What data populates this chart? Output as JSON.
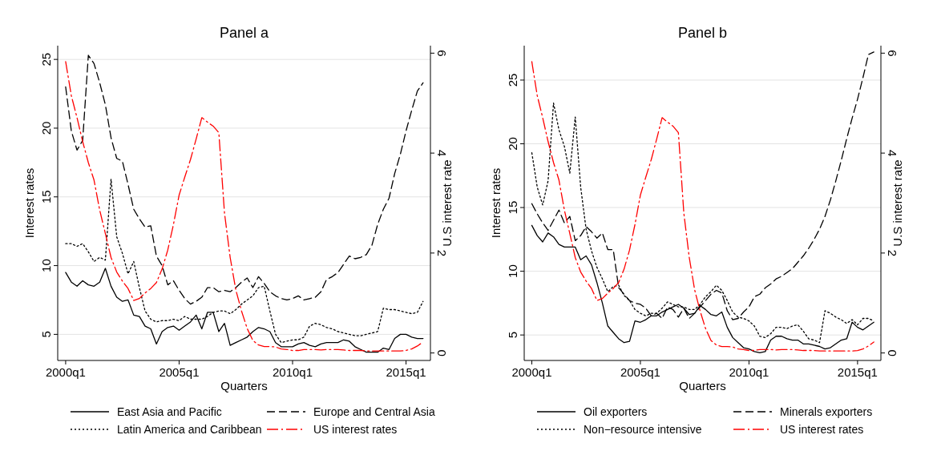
{
  "chart_data": [
    {
      "type": "line",
      "title": "Panel a",
      "xlabel": "Quarters",
      "ylabel": "Interest rates",
      "y2label": "U.S interest rate",
      "categories": [
        "2000q1",
        null,
        null,
        null,
        null,
        null,
        null,
        null,
        null,
        null,
        null,
        null,
        null,
        null,
        null,
        null,
        null,
        null,
        null,
        null,
        "2005q1",
        null,
        null,
        null,
        null,
        null,
        null,
        null,
        null,
        null,
        null,
        null,
        null,
        null,
        null,
        null,
        null,
        null,
        null,
        null,
        "2010q1",
        null,
        null,
        null,
        null,
        null,
        null,
        null,
        null,
        null,
        null,
        null,
        null,
        null,
        null,
        null,
        null,
        null,
        null,
        null,
        "2015q1",
        null,
        null,
        null
      ],
      "ylim": [
        3.1,
        26
      ],
      "yticks": [
        5,
        10,
        15,
        20,
        25
      ],
      "y2lim": [
        -0.15,
        6.15
      ],
      "y2ticks": [
        0,
        2,
        4,
        6
      ],
      "grid": "y",
      "legend": "bottom",
      "marker": "none",
      "series": [
        {
          "name": "East Asia and Pacific",
          "color": "#000000",
          "line_style": "solid",
          "values": [
            9.5,
            8.8,
            8.5,
            8.9,
            8.6,
            8.5,
            8.8,
            9.8,
            8.5,
            7.7,
            7.4,
            7.5,
            6.4,
            6.3,
            5.6,
            5.4,
            4.3,
            5.2,
            5.5,
            5.6,
            5.3,
            5.6,
            5.9,
            6.4,
            5.4,
            6.6,
            6.6,
            5.2,
            5.8,
            4.2,
            4.4,
            4.6,
            4.8,
            5.2,
            5.5,
            5.4,
            5.2,
            4.4,
            4.1,
            4.1,
            4.1,
            4.3,
            4.4,
            4.2,
            4.1,
            4.3,
            4.4,
            4.4,
            4.4,
            4.6,
            4.5,
            4.1,
            3.9,
            3.7,
            3.7,
            3.7,
            4.0,
            3.9,
            4.7,
            5.0,
            5.0,
            4.8,
            4.7,
            4.7
          ]
        },
        {
          "name": "Europe and Central Asia",
          "color": "#000000",
          "line_style": "dashed",
          "values": [
            23.0,
            19.8,
            18.4,
            19.1,
            25.3,
            24.7,
            23.3,
            21.7,
            19.3,
            17.8,
            17.6,
            15.9,
            14.1,
            13.4,
            12.8,
            12.9,
            10.7,
            10.0,
            8.6,
            8.9,
            8.2,
            7.6,
            7.2,
            7.4,
            7.7,
            8.4,
            8.4,
            8.1,
            8.2,
            8.1,
            8.4,
            8.8,
            9.1,
            8.4,
            9.2,
            8.7,
            8.1,
            7.8,
            7.6,
            7.5,
            7.6,
            7.8,
            7.5,
            7.6,
            7.7,
            8.1,
            9.0,
            9.2,
            9.5,
            10.1,
            10.7,
            10.5,
            10.6,
            10.8,
            11.5,
            13.0,
            14.1,
            14.9,
            16.7,
            18.1,
            19.8,
            21.3,
            22.7,
            23.3
          ]
        },
        {
          "name": "Latin America and Caribbean",
          "color": "#000000",
          "line_style": "dotted",
          "values": [
            11.6,
            11.6,
            11.4,
            11.6,
            11.0,
            10.3,
            10.6,
            10.4,
            16.3,
            12.1,
            10.9,
            9.4,
            10.3,
            8.4,
            6.7,
            6.1,
            5.9,
            6.0,
            6.0,
            6.1,
            6.0,
            6.3,
            6.1,
            6.1,
            6.1,
            6.3,
            6.6,
            6.7,
            6.7,
            6.5,
            6.8,
            7.2,
            7.5,
            7.8,
            8.4,
            8.5,
            6.7,
            5.0,
            4.4,
            4.5,
            4.6,
            4.6,
            4.8,
            5.6,
            5.8,
            5.7,
            5.5,
            5.4,
            5.2,
            5.1,
            5.0,
            4.9,
            4.9,
            5.0,
            5.1,
            5.2,
            6.9,
            6.8,
            6.8,
            6.7,
            6.6,
            6.5,
            6.6,
            7.4
          ]
        },
        {
          "name": "US interest rates",
          "color": "#ff0000",
          "line_style": "dashed",
          "axis": "y2",
          "values": [
            5.83,
            5.15,
            4.71,
            4.23,
            3.81,
            3.46,
            2.86,
            2.39,
            1.91,
            1.62,
            1.44,
            1.29,
            1.05,
            1.09,
            1.2,
            1.29,
            1.41,
            1.68,
            2.06,
            2.57,
            3.16,
            3.52,
            3.87,
            4.28,
            4.71,
            4.62,
            4.54,
            4.41,
            2.8,
            1.91,
            1.26,
            0.84,
            0.49,
            0.25,
            0.16,
            0.13,
            0.13,
            0.12,
            0.08,
            0.07,
            0.05,
            0.05,
            0.07,
            0.07,
            0.07,
            0.06,
            0.07,
            0.07,
            0.07,
            0.06,
            0.05,
            0.05,
            0.05,
            0.04,
            0.04,
            0.04,
            0.04,
            0.04,
            0.04,
            0.04,
            0.05,
            0.08,
            0.14,
            0.22
          ]
        }
      ]
    },
    {
      "type": "line",
      "title": "Panel b",
      "xlabel": "Quarters",
      "ylabel": "Interest rates",
      "y2label": "U.S interest rate",
      "categories": [
        "2000q1",
        null,
        null,
        null,
        null,
        null,
        null,
        null,
        null,
        null,
        null,
        null,
        null,
        null,
        null,
        null,
        null,
        null,
        null,
        null,
        "2005q1",
        null,
        null,
        null,
        null,
        null,
        null,
        null,
        null,
        null,
        null,
        null,
        null,
        null,
        null,
        null,
        null,
        null,
        null,
        null,
        "2010q1",
        null,
        null,
        null,
        null,
        null,
        null,
        null,
        null,
        null,
        null,
        null,
        null,
        null,
        null,
        null,
        null,
        null,
        null,
        null,
        "2015q1",
        null,
        null,
        null
      ],
      "ylim": [
        3.0,
        27.7
      ],
      "yticks": [
        5,
        10,
        15,
        20,
        25
      ],
      "y2lim": [
        -0.15,
        6.15
      ],
      "y2ticks": [
        0,
        2,
        4,
        6
      ],
      "grid": "y",
      "legend": "bottom",
      "marker": "none",
      "series": [
        {
          "name": "Oil exporters",
          "color": "#000000",
          "line_style": "solid",
          "values": [
            13.6,
            12.8,
            12.3,
            13.0,
            12.7,
            12.1,
            11.9,
            11.9,
            11.9,
            10.9,
            11.2,
            10.5,
            9.1,
            7.5,
            5.7,
            5.2,
            4.7,
            4.4,
            4.5,
            6.1,
            6.0,
            6.2,
            6.5,
            6.5,
            6.8,
            7.0,
            7.2,
            7.4,
            7.1,
            6.6,
            6.7,
            7.3,
            7.0,
            6.6,
            6.5,
            6.8,
            5.6,
            4.8,
            4.4,
            4.0,
            3.9,
            3.7,
            3.6,
            3.7,
            4.6,
            4.9,
            4.9,
            4.7,
            4.6,
            4.6,
            4.3,
            4.3,
            4.2,
            4.1,
            3.9,
            4.0,
            4.3,
            4.6,
            4.7,
            6.0,
            5.6,
            5.4,
            5.7,
            6.0
          ]
        },
        {
          "name": "Minerals exporters",
          "color": "#000000",
          "line_style": "dashed",
          "values": [
            15.3,
            14.5,
            13.8,
            13.2,
            14.0,
            14.8,
            13.8,
            14.3,
            12.4,
            12.8,
            13.5,
            13.1,
            12.6,
            13.0,
            11.7,
            11.7,
            8.7,
            8.2,
            7.7,
            7.5,
            7.4,
            7.1,
            6.5,
            6.7,
            6.3,
            7.2,
            7.0,
            6.4,
            7.1,
            6.3,
            6.7,
            7.2,
            7.7,
            8.2,
            8.5,
            8.3,
            6.9,
            6.2,
            6.3,
            6.8,
            7.2,
            8.0,
            8.2,
            8.7,
            9.0,
            9.4,
            9.6,
            9.9,
            10.2,
            10.7,
            11.2,
            11.8,
            12.5,
            13.3,
            14.3,
            15.6,
            17.1,
            18.7,
            20.4,
            22.0,
            23.5,
            25.2,
            27.0,
            27.2
          ]
        },
        {
          "name": "Non−resource intensive",
          "color": "#000000",
          "line_style": "dotted",
          "values": [
            19.3,
            16.6,
            15.2,
            17.1,
            23.2,
            21.1,
            19.8,
            17.7,
            22.1,
            16.6,
            13.3,
            11.6,
            10.3,
            9.4,
            8.4,
            8.8,
            8.9,
            8.1,
            7.7,
            7.0,
            6.7,
            6.5,
            6.7,
            6.7,
            7.1,
            7.6,
            7.4,
            7.2,
            7.2,
            7.0,
            7.0,
            7.4,
            8.0,
            8.4,
            8.9,
            8.5,
            7.7,
            6.8,
            6.4,
            6.3,
            6.1,
            5.7,
            4.9,
            4.8,
            5.1,
            5.6,
            5.6,
            5.5,
            5.7,
            5.8,
            5.3,
            4.7,
            4.6,
            4.4,
            6.9,
            6.7,
            6.4,
            6.2,
            5.9,
            6.2,
            5.8,
            6.3,
            6.3,
            6.1
          ]
        },
        {
          "name": "US interest rates",
          "color": "#ff0000",
          "line_style": "dashed",
          "axis": "y2",
          "values": [
            5.83,
            5.15,
            4.71,
            4.23,
            3.81,
            3.46,
            2.86,
            2.39,
            1.91,
            1.62,
            1.44,
            1.29,
            1.05,
            1.09,
            1.2,
            1.29,
            1.41,
            1.68,
            2.06,
            2.57,
            3.16,
            3.52,
            3.87,
            4.28,
            4.71,
            4.62,
            4.54,
            4.41,
            2.8,
            1.91,
            1.26,
            0.84,
            0.49,
            0.25,
            0.16,
            0.13,
            0.13,
            0.12,
            0.08,
            0.07,
            0.05,
            0.05,
            0.07,
            0.07,
            0.07,
            0.06,
            0.07,
            0.07,
            0.07,
            0.06,
            0.05,
            0.05,
            0.05,
            0.04,
            0.04,
            0.04,
            0.04,
            0.04,
            0.04,
            0.04,
            0.05,
            0.08,
            0.14,
            0.22
          ]
        }
      ]
    }
  ]
}
